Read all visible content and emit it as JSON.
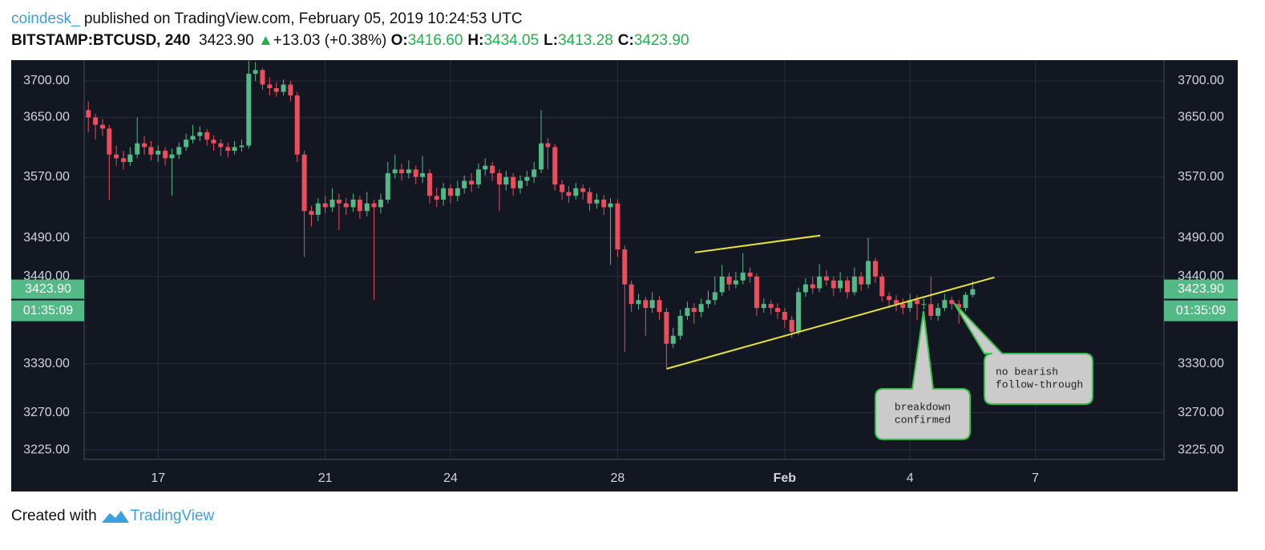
{
  "header": {
    "source": "coindesk_",
    "published": "published on TradingView.com, February 05, 2019 10:24:53 UTC",
    "symbol": "BITSTAMP:BTCUSD, 240",
    "price": "3423.90",
    "change": "+13.03 (+0.38%)",
    "ohlc": [
      {
        "label": "O:",
        "value": "3416.60"
      },
      {
        "label": "H:",
        "value": "3434.05"
      },
      {
        "label": "L:",
        "value": "3413.28"
      },
      {
        "label": "C:",
        "value": "3423.90"
      }
    ]
  },
  "chart_data": {
    "type": "candlestick",
    "log": true,
    "grid": true,
    "up_color": "#53b987",
    "down_color": "#eb4d5c",
    "background": "#131722",
    "xlim": [
      15.23,
      41.08
    ],
    "xticks": [
      17,
      21,
      24,
      28,
      {
        "value": 32,
        "label": "Feb"
      },
      {
        "value": 35,
        "label": "4"
      },
      {
        "value": 38,
        "label": "7"
      }
    ],
    "ylim": [
      3213.5,
      3728.8
    ],
    "yticks": [
      {
        "value": 3700,
        "label": "3700.00"
      },
      {
        "value": 3650,
        "label": "3650.00"
      },
      {
        "value": 3570,
        "label": "3570.00"
      },
      {
        "value": 3490,
        "label": "3490.00"
      },
      {
        "value": 3440,
        "label": "3440.00"
      },
      {
        "value": 3330,
        "label": "3330.00"
      },
      {
        "value": 3270,
        "label": "3270.00"
      },
      {
        "value": 3225,
        "label": "3225.00"
      }
    ],
    "x": [
      15.33,
      15.5,
      15.67,
      15.83,
      16,
      16.17,
      16.33,
      16.5,
      16.67,
      16.83,
      17,
      17.17,
      17.33,
      17.5,
      17.67,
      17.83,
      18,
      18.17,
      18.33,
      18.5,
      18.67,
      18.83,
      19,
      19.17,
      19.33,
      19.5,
      19.67,
      19.83,
      20,
      20.17,
      20.33,
      20.5,
      20.67,
      20.83,
      21,
      21.17,
      21.33,
      21.5,
      21.67,
      21.83,
      22,
      22.17,
      22.33,
      22.5,
      22.67,
      22.83,
      23,
      23.17,
      23.33,
      23.5,
      23.67,
      23.83,
      24,
      24.17,
      24.33,
      24.5,
      24.67,
      24.83,
      25,
      25.17,
      25.33,
      25.5,
      25.67,
      25.83,
      26,
      26.17,
      26.33,
      26.5,
      26.67,
      26.83,
      27,
      27.17,
      27.33,
      27.5,
      27.67,
      27.83,
      28,
      28.17,
      28.33,
      28.5,
      28.67,
      28.83,
      29,
      29.17,
      29.33,
      29.5,
      29.67,
      29.83,
      30,
      30.17,
      30.33,
      30.5,
      30.67,
      30.83,
      31,
      31.17,
      31.33,
      31.5,
      31.67,
      31.83,
      32,
      32.17,
      32.33,
      32.5,
      32.67,
      32.83,
      33,
      33.17,
      33.33,
      33.5,
      33.67,
      33.83,
      34,
      34.17,
      34.33,
      34.5,
      34.67,
      34.83,
      35,
      35.17,
      35.33,
      35.5,
      35.67,
      35.83,
      36,
      36.17,
      36.33,
      36.5
    ],
    "open": [
      3660,
      3650,
      3640,
      3635,
      3600,
      3595,
      3590,
      3600,
      3615,
      3610,
      3600,
      3605,
      3595,
      3600,
      3610,
      3620,
      3625,
      3630,
      3620,
      3615,
      3610,
      3605,
      3610,
      3612,
      3710,
      3715,
      3695,
      3690,
      3685,
      3695,
      3680,
      3600,
      3525,
      3520,
      3535,
      3530,
      3540,
      3535,
      3530,
      3540,
      3525,
      3535,
      3530,
      3540,
      3575,
      3580,
      3575,
      3580,
      3570,
      3575,
      3545,
      3540,
      3555,
      3545,
      3555,
      3565,
      3560,
      3580,
      3585,
      3575,
      3560,
      3570,
      3555,
      3565,
      3570,
      3580,
      3615,
      3610,
      3560,
      3550,
      3545,
      3555,
      3550,
      3535,
      3540,
      3530,
      3535,
      3475,
      3430,
      3405,
      3410,
      3400,
      3410,
      3395,
      3355,
      3365,
      3390,
      3400,
      3395,
      3405,
      3410,
      3420,
      3440,
      3430,
      3435,
      3445,
      3440,
      3400,
      3405,
      3400,
      3395,
      3385,
      3370,
      3420,
      3430,
      3425,
      3440,
      3435,
      3425,
      3435,
      3420,
      3440,
      3430,
      3460,
      3440,
      3415,
      3410,
      3405,
      3400,
      3410,
      3405,
      3405,
      3390,
      3400,
      3410,
      3405,
      3400,
      3416.6
    ],
    "high": [
      3672,
      3655,
      3648,
      3640,
      3612,
      3605,
      3610,
      3650,
      3625,
      3618,
      3612,
      3610,
      3608,
      3616,
      3628,
      3640,
      3638,
      3634,
      3626,
      3620,
      3616,
      3618,
      3620,
      3728,
      3726,
      3718,
      3705,
      3698,
      3702,
      3700,
      3685,
      3605,
      3532,
      3542,
      3545,
      3555,
      3548,
      3542,
      3548,
      3545,
      3550,
      3540,
      3548,
      3590,
      3600,
      3588,
      3592,
      3585,
      3598,
      3580,
      3556,
      3562,
      3560,
      3565,
      3572,
      3575,
      3588,
      3595,
      3590,
      3580,
      3578,
      3575,
      3572,
      3578,
      3590,
      3660,
      3622,
      3614,
      3566,
      3558,
      3562,
      3560,
      3556,
      3548,
      3546,
      3542,
      3540,
      3480,
      3435,
      3418,
      3414,
      3420,
      3415,
      3400,
      3375,
      3398,
      3408,
      3406,
      3412,
      3422,
      3440,
      3455,
      3445,
      3446,
      3470,
      3452,
      3444,
      3412,
      3410,
      3406,
      3400,
      3390,
      3426,
      3438,
      3440,
      3456,
      3448,
      3440,
      3446,
      3440,
      3452,
      3446,
      3490,
      3464,
      3444,
      3420,
      3416,
      3412,
      3418,
      3416,
      3412,
      3440,
      3406,
      3418,
      3414,
      3410,
      3420,
      3434.05
    ],
    "low": [
      3630,
      3620,
      3625,
      3540,
      3585,
      3580,
      3585,
      3595,
      3600,
      3592,
      3590,
      3585,
      3545,
      3594,
      3605,
      3615,
      3618,
      3612,
      3605,
      3598,
      3596,
      3600,
      3604,
      3608,
      3700,
      3688,
      3680,
      3678,
      3680,
      3672,
      3590,
      3465,
      3505,
      3512,
      3522,
      3524,
      3500,
      3520,
      3524,
      3515,
      3518,
      3410,
      3522,
      3535,
      3568,
      3565,
      3568,
      3560,
      3562,
      3535,
      3530,
      3532,
      3535,
      3538,
      3548,
      3550,
      3555,
      3572,
      3565,
      3525,
      3552,
      3545,
      3548,
      3558,
      3562,
      3575,
      3580,
      3552,
      3540,
      3536,
      3540,
      3540,
      3525,
      3528,
      3520,
      3455,
      3465,
      3345,
      3395,
      3398,
      3365,
      3394,
      3385,
      3325,
      3350,
      3360,
      3385,
      3380,
      3388,
      3400,
      3404,
      3415,
      3422,
      3425,
      3430,
      3432,
      3390,
      3394,
      3392,
      3386,
      3375,
      3362,
      3366,
      3414,
      3418,
      3420,
      3428,
      3415,
      3420,
      3412,
      3416,
      3422,
      3425,
      3432,
      3408,
      3400,
      3396,
      3392,
      3395,
      3385,
      3398,
      3385,
      3384,
      3396,
      3398,
      3380,
      3396,
      3413.28
    ],
    "close": [
      3650,
      3640,
      3635,
      3600,
      3595,
      3590,
      3600,
      3615,
      3610,
      3600,
      3605,
      3595,
      3600,
      3610,
      3620,
      3625,
      3630,
      3620,
      3615,
      3610,
      3605,
      3610,
      3612,
      3710,
      3715,
      3695,
      3690,
      3685,
      3695,
      3680,
      3600,
      3525,
      3520,
      3535,
      3530,
      3540,
      3535,
      3530,
      3540,
      3525,
      3535,
      3530,
      3540,
      3575,
      3580,
      3575,
      3580,
      3570,
      3575,
      3545,
      3540,
      3555,
      3545,
      3555,
      3565,
      3560,
      3580,
      3585,
      3575,
      3560,
      3570,
      3555,
      3565,
      3570,
      3580,
      3615,
      3610,
      3560,
      3550,
      3545,
      3555,
      3550,
      3535,
      3540,
      3530,
      3535,
      3475,
      3430,
      3405,
      3410,
      3400,
      3410,
      3395,
      3355,
      3365,
      3390,
      3400,
      3395,
      3405,
      3410,
      3420,
      3440,
      3430,
      3435,
      3445,
      3440,
      3400,
      3405,
      3400,
      3395,
      3385,
      3370,
      3420,
      3430,
      3425,
      3440,
      3435,
      3425,
      3435,
      3420,
      3440,
      3430,
      3460,
      3440,
      3415,
      3410,
      3405,
      3400,
      3410,
      3405,
      3405,
      3390,
      3400,
      3410,
      3405,
      3400,
      3416.6,
      3423.9
    ],
    "last_price": 3423.9,
    "last_price_label": "3423.90",
    "countdown": "01:35:09",
    "price_label_color": "#53b987",
    "trendline_color": "#e8e337",
    "trendlines": [
      {
        "x": [
          29.85,
          32.85
        ],
        "y": [
          3471,
          3493
        ]
      },
      {
        "x": [
          29.17,
          37.02
        ],
        "y": [
          3323.8,
          3439
        ]
      }
    ],
    "annotations": [
      {
        "lines": [
          "breakdown",
          "confirmed"
        ]
      },
      {
        "lines": [
          "no bearish",
          "follow-through"
        ]
      }
    ]
  },
  "footer": {
    "text": "Created with",
    "brand": "TradingView"
  }
}
